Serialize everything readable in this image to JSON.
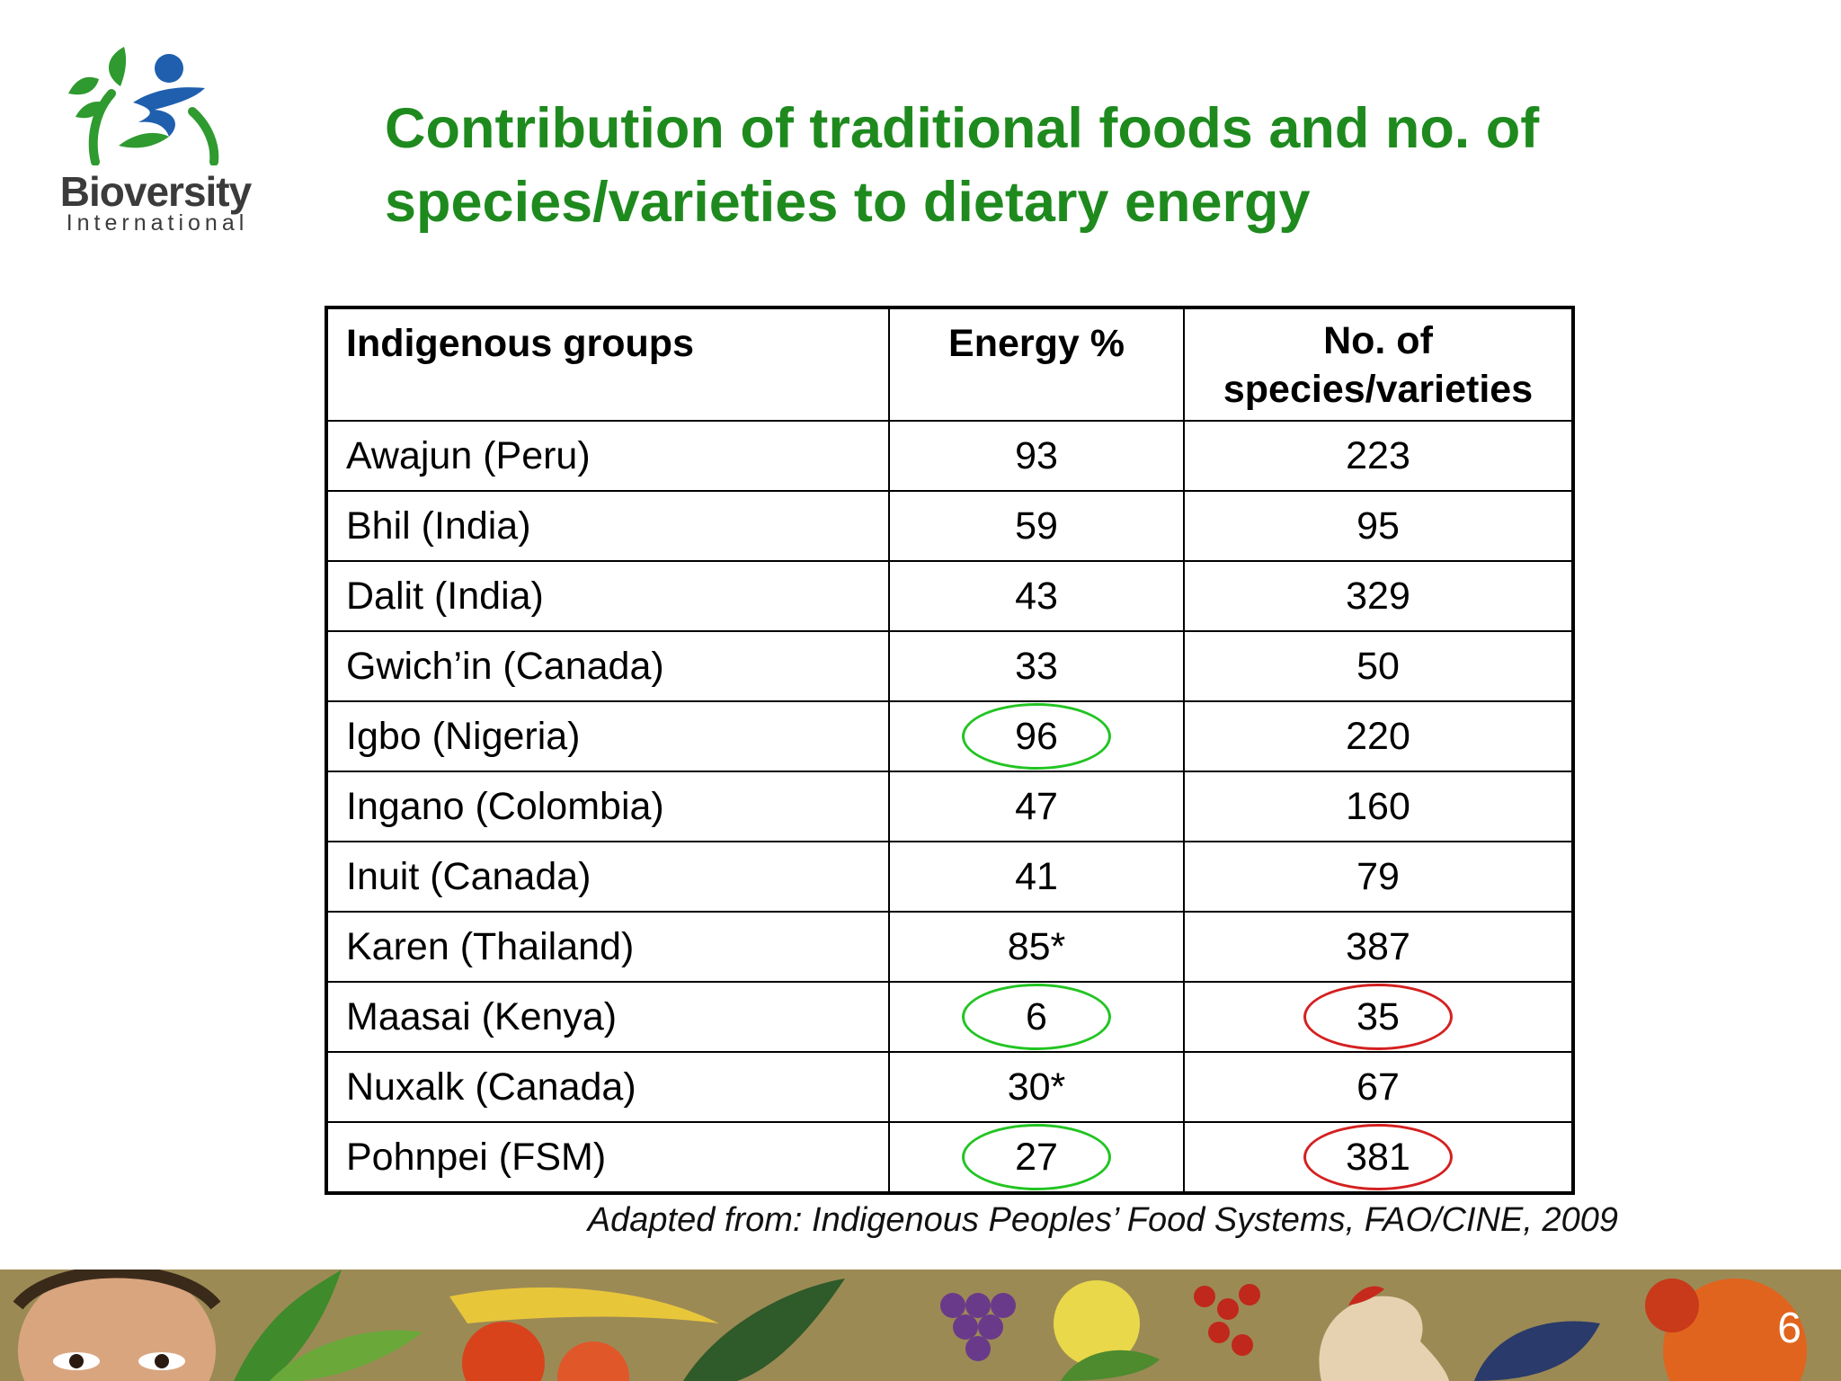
{
  "logo": {
    "name": "Bioversity",
    "sub": "International"
  },
  "title": {
    "line1": "Contribution of traditional foods and no. of",
    "line2": "species/varieties to dietary energy"
  },
  "table": {
    "headers": {
      "group": "Indigenous groups",
      "energy": "Energy %",
      "species_line1": "No. of",
      "species_line2": "species/varieties"
    },
    "rows": [
      {
        "group": "Awajun (Peru)",
        "energy": "93",
        "species": "223"
      },
      {
        "group": "Bhil (India)",
        "energy": "59",
        "species": "95"
      },
      {
        "group": "Dalit (India)",
        "energy": "43",
        "species": "329"
      },
      {
        "group": "Gwich’in (Canada)",
        "energy": "33",
        "species": "50"
      },
      {
        "group": "Igbo (Nigeria)",
        "energy": "96",
        "species": "220",
        "energy_circle": "green"
      },
      {
        "group": "Ingano (Colombia)",
        "energy": "47",
        "species": "160"
      },
      {
        "group": "Inuit (Canada)",
        "energy": "41",
        "species": "79"
      },
      {
        "group": "Karen (Thailand)",
        "energy": "85*",
        "species": "387"
      },
      {
        "group": "Maasai (Kenya)",
        "energy": "6",
        "species": "35",
        "energy_circle": "green",
        "species_circle": "red"
      },
      {
        "group": "Nuxalk (Canada)",
        "energy": "30*",
        "species": "67"
      },
      {
        "group": "Pohnpei (FSM)",
        "energy": "27",
        "species": "381",
        "energy_circle": "green",
        "species_circle": "red"
      }
    ]
  },
  "source": "Adapted from: Indigenous Peoples’ Food Systems, FAO/CINE, 2009",
  "page_number": "6",
  "colors": {
    "title": "#1e8a1e",
    "circle_green": "#22c422",
    "circle_red": "#d42020",
    "logo_blue": "#1f5fae",
    "logo_green": "#2f9a2f"
  }
}
